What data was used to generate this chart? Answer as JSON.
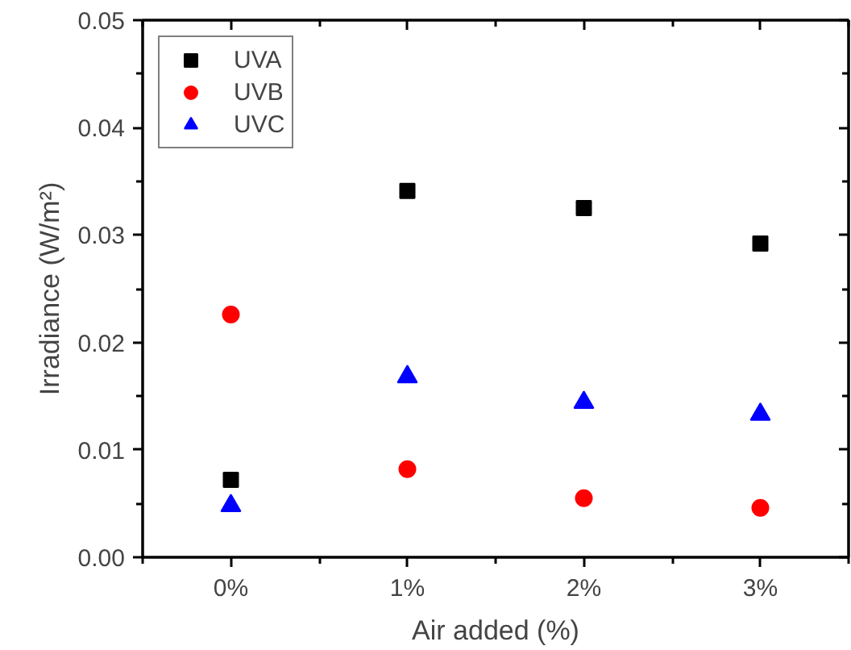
{
  "chart_data": {
    "type": "scatter",
    "xlabel": "Air added (%)",
    "ylabel": "Irradiance (W/m²)",
    "categories": [
      "0%",
      "1%",
      "2%",
      "3%"
    ],
    "ylim": [
      0,
      0.05
    ],
    "yticks": [
      {
        "value": 0,
        "label": "0.00"
      },
      0.01,
      0.02,
      0.03,
      0.04,
      0.05
    ],
    "grid": false,
    "legend": "top left",
    "series": [
      {
        "name": "UVA",
        "color": "#000000",
        "marker": "square",
        "values": [
          0.0072,
          0.0341,
          0.0325,
          0.0292
        ]
      },
      {
        "name": "UVB",
        "color": "#ff0000",
        "marker": "circle",
        "values": [
          0.0226,
          0.0082,
          0.0055,
          0.0046
        ]
      },
      {
        "name": "UVC",
        "color": "#0000ff",
        "marker": "triangle",
        "values": [
          0.0048,
          0.0168,
          0.0144,
          0.0133
        ]
      }
    ]
  }
}
